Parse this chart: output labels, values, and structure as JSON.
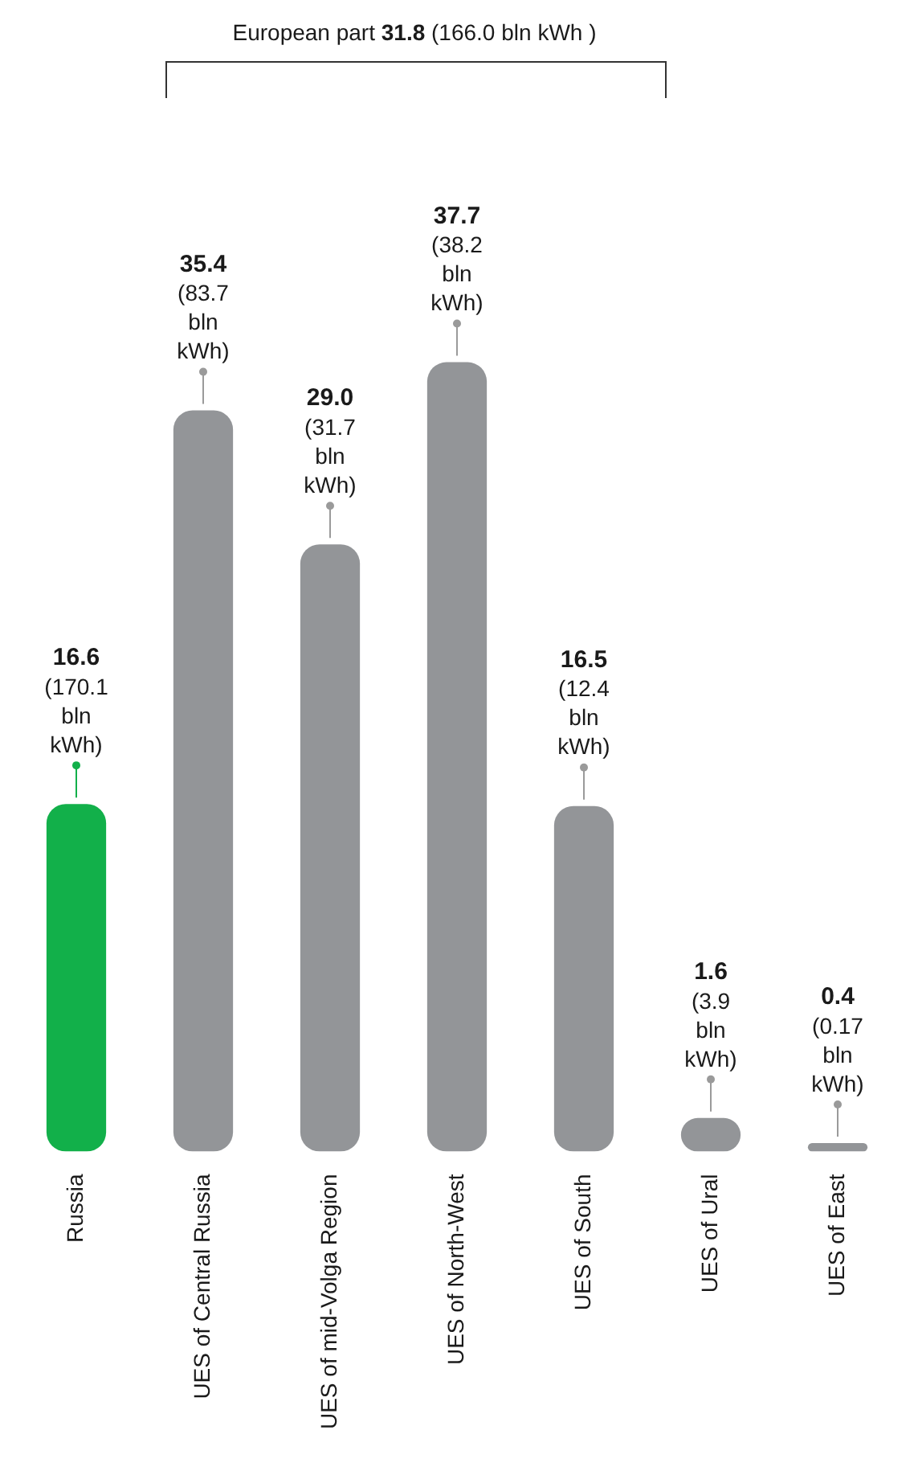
{
  "chart_data": {
    "type": "bar",
    "categories": [
      "Russia",
      "UES of Central Russia",
      "UES of mid-Volga Region",
      "UES of North-West",
      "UES of South",
      "UES of Ural",
      "UES of East"
    ],
    "values": [
      16.6,
      35.4,
      29.0,
      37.7,
      16.5,
      1.6,
      0.4
    ],
    "colors": [
      "#12b04a",
      "#939598",
      "#939598",
      "#939598",
      "#939598",
      "#939598",
      "#939598"
    ],
    "value_labels": [
      "16.6 (170.1 bln kWh)",
      "35.4 (83.7 bln kWh)",
      "29.0 (31.7 bln kWh)",
      "37.7 (38.2 bln kWh)",
      "16.5 (12.4 bln kWh)",
      "1.6 (3.9 bln kWh)",
      "0.4 (0.17 bln kWh)"
    ],
    "annotations": [
      "European part 31.8 (166.0 bln kWh )"
    ],
    "grid": false,
    "legend": false
  }
}
